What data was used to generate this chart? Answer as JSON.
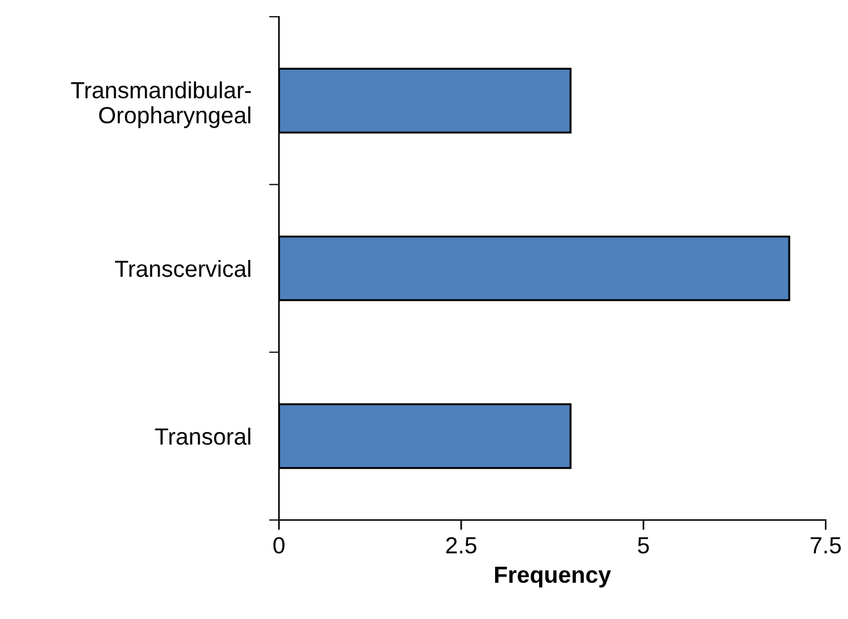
{
  "chart_data": {
    "type": "bar",
    "orientation": "horizontal",
    "xlabel": "Frequency",
    "categories": [
      "Transmandibular-\nOropharyngeal",
      "Transcervical",
      "Transoral"
    ],
    "values": [
      4,
      7,
      4
    ],
    "color": "#4f81bd",
    "xlim": [
      0,
      7.5
    ],
    "xticks": [
      0,
      2.5,
      5,
      {
        "value": 7.5,
        "label": "7.5"
      }
    ],
    "grid": false,
    "legend": false
  }
}
